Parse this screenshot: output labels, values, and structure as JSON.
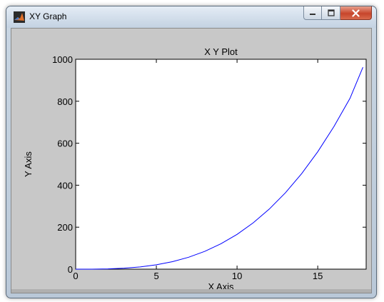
{
  "window": {
    "title": "XY Graph",
    "icon": "matlab-icon",
    "buttons": {
      "minimize": "minimize-icon",
      "maximize": "maximize-icon",
      "close": "close-icon"
    }
  },
  "chart_data": {
    "type": "line",
    "title": "X Y Plot",
    "xlabel": "X Axis",
    "ylabel": "Y Axis",
    "xlim": [
      0,
      18
    ],
    "ylim": [
      0,
      1000
    ],
    "xticks": [
      0,
      5,
      10,
      15
    ],
    "yticks": [
      0,
      200,
      400,
      600,
      800,
      1000
    ],
    "grid": false,
    "line_color": "#0000ff",
    "series": [
      {
        "x": [
          0,
          1,
          2,
          3,
          4,
          5,
          6,
          7,
          8,
          9,
          10,
          11,
          12,
          13,
          14,
          15,
          16,
          17,
          17.8
        ],
        "values": [
          0,
          0.2,
          1.3,
          4.5,
          10.6,
          20.7,
          35.8,
          56.8,
          84.8,
          120.8,
          165.7,
          220.6,
          286.4,
          364.1,
          454.8,
          559.4,
          678.9,
          814.2,
          962
        ]
      }
    ]
  }
}
